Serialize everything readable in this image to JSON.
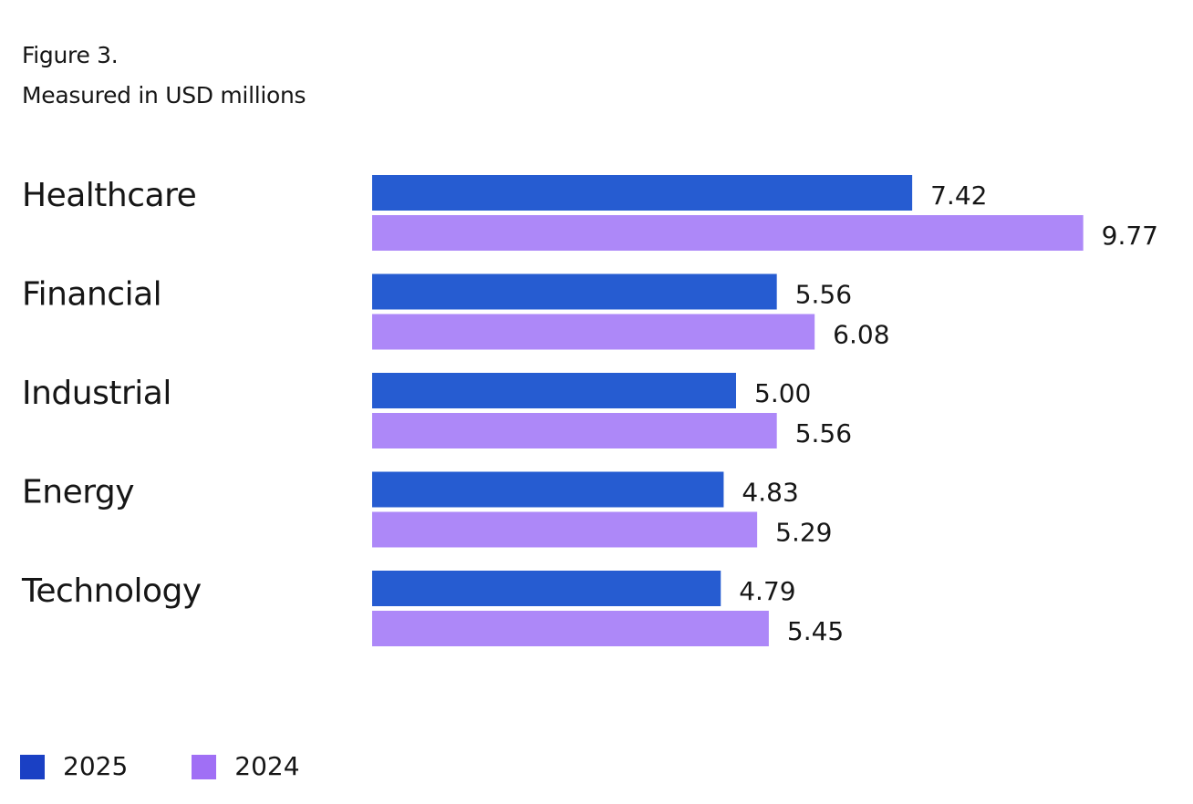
{
  "chart_data": {
    "type": "bar",
    "orientation": "horizontal",
    "title": "Figure 3.",
    "subtitle": "Measured in USD millions",
    "categories": [
      "Healthcare",
      "Financial",
      "Industrial",
      "Energy",
      "Technology"
    ],
    "series": [
      {
        "name": "2025",
        "values": [
          7.42,
          5.56,
          5.0,
          4.83,
          4.79
        ],
        "labels": [
          "7.42",
          "5.56",
          "5.00",
          "4.83",
          "4.79"
        ],
        "color": "#265cd1",
        "legend_color": "#1a40c4"
      },
      {
        "name": "2024",
        "values": [
          9.77,
          6.08,
          5.56,
          5.29,
          5.45
        ],
        "labels": [
          "9.77",
          "6.08",
          "5.56",
          "5.29",
          "5.45"
        ],
        "color": "#ad88f8",
        "legend_color": "#a06ff5"
      }
    ],
    "xlabel": "",
    "ylabel": "",
    "xlim": [
      0,
      10
    ],
    "grid": false,
    "axes_visible": false,
    "legend_position": "bottom-left"
  }
}
